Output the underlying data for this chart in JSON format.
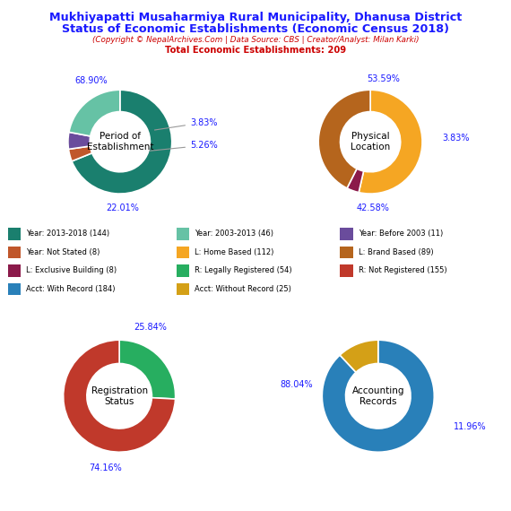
{
  "title_line1": "Mukhiyapatti Musaharmiya Rural Municipality, Dhanusa District",
  "title_line2": "Status of Economic Establishments (Economic Census 2018)",
  "subtitle": "(Copyright © NepalArchives.Com | Data Source: CBS | Creator/Analyst: Milan Karki)",
  "total_line": "Total Economic Establishments: 209",
  "pie1_title": "Period of\nEstablishment",
  "pie1_values": [
    68.9,
    3.83,
    5.26,
    22.01
  ],
  "pie1_colors": [
    "#1a7f6e",
    "#c0572b",
    "#6a4c9c",
    "#66c2a5"
  ],
  "pie1_startangle": 90,
  "pie2_title": "Physical\nLocation",
  "pie2_values": [
    53.59,
    3.83,
    42.58
  ],
  "pie2_colors": [
    "#f5a623",
    "#8b1a4a",
    "#b5651d"
  ],
  "pie2_startangle": 90,
  "pie3_title": "Registration\nStatus",
  "pie3_values": [
    25.84,
    74.16
  ],
  "pie3_colors": [
    "#27ae60",
    "#c0392b"
  ],
  "pie3_startangle": 90,
  "pie4_title": "Accounting\nRecords",
  "pie4_values": [
    88.04,
    11.96
  ],
  "pie4_colors": [
    "#2980b9",
    "#d4a017"
  ],
  "pie4_startangle": 90,
  "legend_rows": [
    [
      {
        "label": "Year: 2013-2018 (144)",
        "color": "#1a7f6e"
      },
      {
        "label": "Year: 2003-2013 (46)",
        "color": "#66c2a5"
      },
      {
        "label": "Year: Before 2003 (11)",
        "color": "#6a4c9c"
      }
    ],
    [
      {
        "label": "Year: Not Stated (8)",
        "color": "#c0572b"
      },
      {
        "label": "L: Home Based (112)",
        "color": "#f5a623"
      },
      {
        "label": "L: Brand Based (89)",
        "color": "#b5651d"
      }
    ],
    [
      {
        "label": "L: Exclusive Building (8)",
        "color": "#8b1a4a"
      },
      {
        "label": "R: Legally Registered (54)",
        "color": "#27ae60"
      },
      {
        "label": "R: Not Registered (155)",
        "color": "#c0392b"
      }
    ],
    [
      {
        "label": "Acct: With Record (184)",
        "color": "#2980b9"
      },
      {
        "label": "Acct: Without Record (25)",
        "color": "#d4a017"
      }
    ]
  ],
  "title_color": "#1a1aff",
  "subtitle_color": "#cc0000",
  "label_color": "#1a1aff",
  "bg_color": "#ffffff"
}
